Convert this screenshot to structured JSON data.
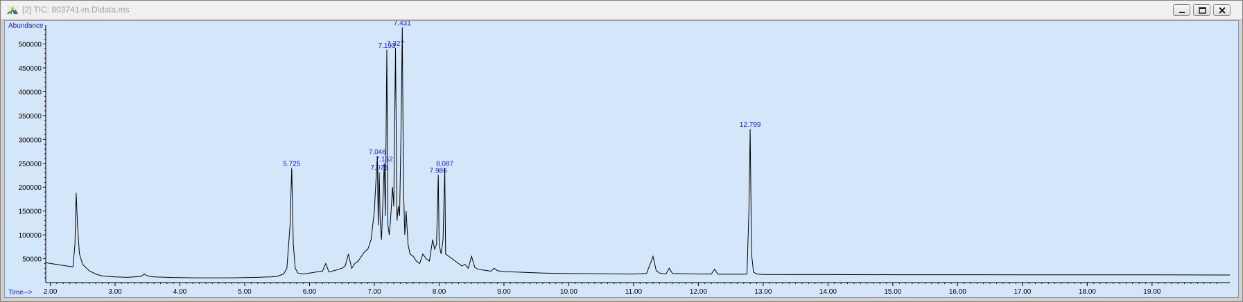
{
  "window": {
    "title": "[2] TIC: 803741-m.D\\data.ms",
    "icon": "chromatogram-app-icon"
  },
  "colors": {
    "background": "#d4e6fa",
    "trace": "#000000",
    "baseline": "#e0003a",
    "peak_label": "#1a1acc",
    "axis_label": "#1a1acc"
  },
  "chart_data": {
    "type": "line",
    "xlabel": "Time-->",
    "ylabel": "Abundance",
    "xlim": [
      1.93,
      20.2
    ],
    "ylim": [
      0,
      540000
    ],
    "grid": false,
    "x_ticks": [
      "2.00",
      "3.00",
      "4.00",
      "5.00",
      "6.00",
      "7.00",
      "8.00",
      "9.00",
      "10.00",
      "11.00",
      "12.00",
      "13.00",
      "14.00",
      "15.00",
      "16.00",
      "17.00",
      "18.00",
      "19.00"
    ],
    "y_ticks": [
      "50000",
      "100000",
      "150000",
      "200000",
      "250000",
      "300000",
      "350000",
      "400000",
      "450000",
      "500000"
    ],
    "peak_labels": [
      {
        "label": "5.725",
        "x": 5.725,
        "y": 240000
      },
      {
        "label": "7.046",
        "x": 7.046,
        "y": 265000
      },
      {
        "label": "7.152",
        "x": 7.152,
        "y": 250000
      },
      {
        "label": "7.075",
        "x": 7.075,
        "y": 232000
      },
      {
        "label": "7.193",
        "x": 7.193,
        "y": 488000
      },
      {
        "label": "7.327",
        "x": 7.327,
        "y": 492000
      },
      {
        "label": "7.431",
        "x": 7.431,
        "y": 535000
      },
      {
        "label": "7.986",
        "x": 7.986,
        "y": 226000
      },
      {
        "label": "8.087",
        "x": 8.087,
        "y": 240000
      },
      {
        "label": "12.799",
        "x": 12.799,
        "y": 322000
      }
    ],
    "series": [
      {
        "values_note": "",
        "x": [
          1.93,
          2.0,
          2.1,
          2.2,
          2.3,
          2.35,
          2.38,
          2.4,
          2.42,
          2.45,
          2.5,
          2.6,
          2.7,
          2.8,
          3.0,
          3.2,
          3.4,
          3.45,
          3.5,
          3.6,
          3.8,
          4.0,
          4.2,
          4.5,
          4.8,
          5.0,
          5.2,
          5.4,
          5.5,
          5.6,
          5.65,
          5.7,
          5.725,
          5.75,
          5.78,
          5.82,
          5.9,
          6.0,
          6.1,
          6.2,
          6.25,
          6.3,
          6.4,
          6.5,
          6.55,
          6.6,
          6.65,
          6.7,
          6.75,
          6.8,
          6.85,
          6.9,
          6.95,
          7.0,
          7.02,
          7.046,
          7.06,
          7.075,
          7.09,
          7.11,
          7.13,
          7.152,
          7.17,
          7.193,
          7.21,
          7.23,
          7.25,
          7.28,
          7.3,
          7.327,
          7.35,
          7.37,
          7.39,
          7.41,
          7.431,
          7.45,
          7.47,
          7.49,
          7.52,
          7.55,
          7.6,
          7.65,
          7.7,
          7.75,
          7.8,
          7.85,
          7.9,
          7.93,
          7.96,
          7.986,
          8.0,
          8.03,
          8.06,
          8.087,
          8.1,
          8.15,
          8.2,
          8.25,
          8.3,
          8.35,
          8.4,
          8.45,
          8.5,
          8.55,
          8.6,
          8.7,
          8.8,
          8.85,
          8.9,
          9.0,
          9.2,
          9.4,
          9.6,
          9.8,
          10.0,
          10.5,
          11.0,
          11.2,
          11.3,
          11.35,
          11.4,
          11.5,
          11.55,
          11.6,
          12.0,
          12.2,
          12.25,
          12.3,
          12.5,
          12.7,
          12.75,
          12.78,
          12.799,
          12.82,
          12.85,
          12.9,
          13.0,
          14.0,
          15.0,
          16.0,
          17.0,
          18.0,
          19.0,
          20.0,
          20.2
        ],
        "y": [
          42000,
          40000,
          38000,
          36000,
          34000,
          33000,
          80000,
          188000,
          120000,
          60000,
          38000,
          25000,
          18000,
          14000,
          12000,
          11000,
          13000,
          18000,
          14000,
          12000,
          11000,
          10500,
          10000,
          10000,
          10000,
          10500,
          11000,
          12000,
          13000,
          18000,
          30000,
          120000,
          240000,
          80000,
          30000,
          20000,
          18000,
          20000,
          22000,
          24000,
          40000,
          22000,
          26000,
          30000,
          35000,
          60000,
          30000,
          40000,
          45000,
          55000,
          65000,
          70000,
          90000,
          150000,
          200000,
          265000,
          120000,
          232000,
          130000,
          90000,
          160000,
          250000,
          140000,
          488000,
          120000,
          100000,
          130000,
          200000,
          160000,
          492000,
          130000,
          160000,
          140000,
          300000,
          535000,
          200000,
          100000,
          150000,
          80000,
          60000,
          55000,
          45000,
          40000,
          60000,
          50000,
          45000,
          90000,
          70000,
          80000,
          226000,
          80000,
          60000,
          90000,
          240000,
          60000,
          55000,
          50000,
          45000,
          40000,
          35000,
          38000,
          30000,
          55000,
          32000,
          28000,
          26000,
          24000,
          30000,
          25000,
          23000,
          22000,
          21000,
          20000,
          19500,
          19000,
          18500,
          18000,
          19000,
          55000,
          25000,
          20000,
          18000,
          30000,
          19000,
          18000,
          18000,
          28000,
          17500,
          17500,
          17500,
          18000,
          150000,
          322000,
          60000,
          22000,
          18000,
          17000,
          16800,
          16600,
          16500,
          16400,
          16300,
          16200,
          16000,
          16000
        ]
      }
    ]
  }
}
